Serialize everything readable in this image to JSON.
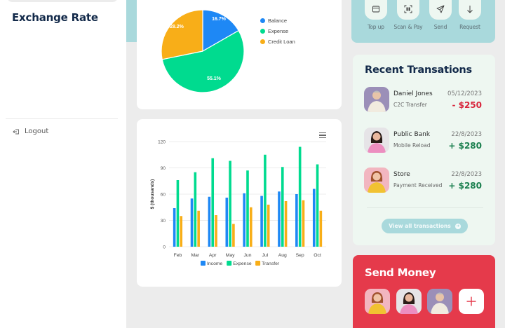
{
  "sidebar": {
    "logout_label": "Logout"
  },
  "colors": {
    "income": "#1E88F5",
    "expense": "#00DB8F",
    "transfer": "#F8AE18",
    "teal": "#A9D9DC",
    "navy": "#132A4A",
    "red": "#E53A4B",
    "mint": "#EEF7F1",
    "negative": "#D8263C",
    "positive": "#1A7F4E"
  },
  "quick_actions": [
    {
      "label": "Top up",
      "icon": "wallet-icon"
    },
    {
      "label": "Scan & Pay",
      "icon": "scan-icon"
    },
    {
      "label": "Send",
      "icon": "send-icon"
    },
    {
      "label": "Request",
      "icon": "arrow-down-icon"
    }
  ],
  "recent_transactions": {
    "title": "Recent Transations",
    "items": [
      {
        "name": "Daniel Jones",
        "type": "C2C Transfer",
        "date": "05/12/2023",
        "amount": "- $250",
        "direction": "out"
      },
      {
        "name": "Public Bank",
        "type": "Mobile Reload",
        "date": "22/8/2023",
        "amount": "+ $280",
        "direction": "in"
      },
      {
        "name": "Store",
        "type": "Payment Received",
        "date": "22/8/2023",
        "amount": "+ $280",
        "direction": "in"
      }
    ],
    "view_all_label": "View all transactions"
  },
  "send_money": {
    "title": "Send Money",
    "add_label": "+"
  },
  "exchange_rate": {
    "title": "Exchange Rate"
  },
  "chart_data": [
    {
      "type": "pie",
      "title": "",
      "categories": [
        "Balance",
        "Expense",
        "Credit Loan"
      ],
      "values": [
        16.7,
        55.1,
        28.2
      ],
      "labels": [
        "16.7%",
        "55.1%",
        "28.2%"
      ],
      "colors": [
        "#1E88F5",
        "#00DB8F",
        "#F8AE18"
      ],
      "legend_position": "right"
    },
    {
      "type": "bar",
      "title": "",
      "xlabel": "",
      "ylabel": "$ (thousands)",
      "categories": [
        "Feb",
        "Mar",
        "Apr",
        "May",
        "Jun",
        "Jul",
        "Aug",
        "Sep",
        "Oct"
      ],
      "series": [
        {
          "name": "Income",
          "values": [
            44,
            55,
            57,
            56,
            61,
            58,
            63,
            60,
            66
          ],
          "color": "#1E88F5"
        },
        {
          "name": "Expense",
          "values": [
            76,
            85,
            101,
            98,
            87,
            105,
            91,
            114,
            94
          ],
          "color": "#00DB8F"
        },
        {
          "name": "Transfer",
          "values": [
            35,
            41,
            36,
            26,
            45,
            48,
            52,
            53,
            41
          ],
          "color": "#F8AE18"
        }
      ],
      "ylim": [
        0,
        120
      ],
      "yticks": [
        "0",
        "30",
        "60",
        "90",
        "120"
      ],
      "grid": true,
      "legend_position": "bottom"
    }
  ]
}
